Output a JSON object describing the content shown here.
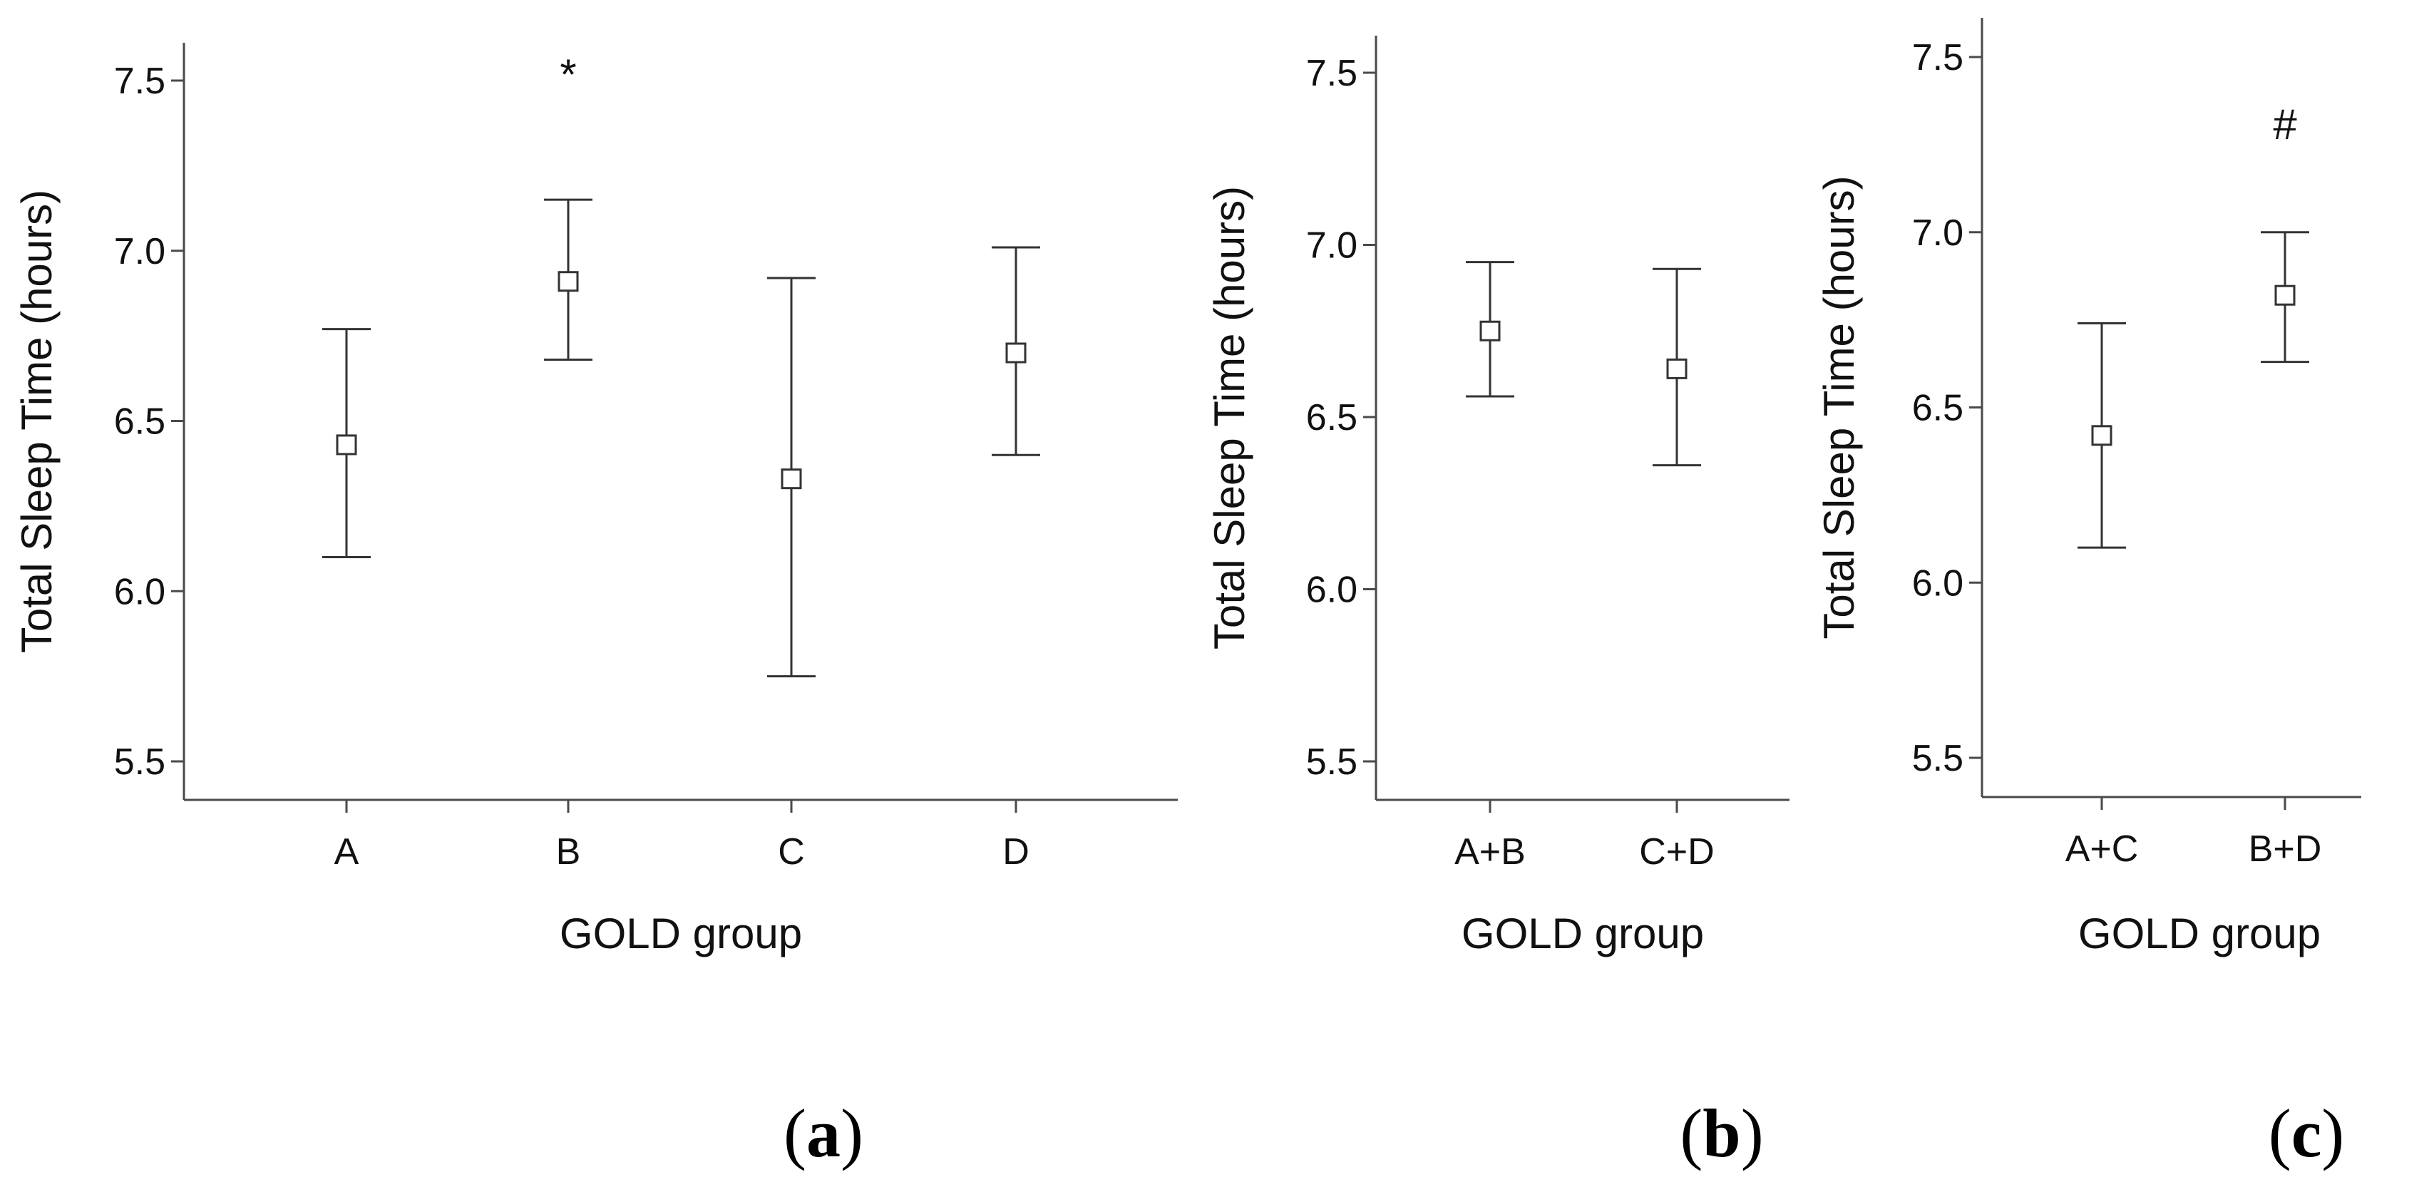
{
  "chart_data": [
    {
      "type": "errorbar",
      "panel_label": "(a)",
      "panel_label_text": "a",
      "xlabel": "GOLD group",
      "ylabel": "Total Sleep Time (hours)",
      "ylim": [
        5.4,
        7.62
      ],
      "yticks": [
        "5.5",
        "6.0",
        "6.5",
        "7.0",
        "7.5"
      ],
      "categories": [
        "A",
        "B",
        "C",
        "D"
      ],
      "means": [
        6.43,
        6.91,
        6.33,
        6.7
      ],
      "lower": [
        6.1,
        6.68,
        5.75,
        6.4
      ],
      "upper": [
        6.77,
        7.15,
        6.92,
        7.01
      ],
      "annotations": [
        "",
        "*",
        "",
        ""
      ]
    },
    {
      "type": "errorbar",
      "panel_label": "(b)",
      "panel_label_text": "b",
      "xlabel": "GOLD group",
      "ylabel": "Total Sleep Time (hours)",
      "ylim": [
        5.4,
        7.62
      ],
      "yticks": [
        "5.5",
        "6.0",
        "6.5",
        "7.0",
        "7.5"
      ],
      "categories": [
        "A+B",
        "C+D"
      ],
      "means": [
        6.75,
        6.64
      ],
      "lower": [
        6.56,
        6.36
      ],
      "upper": [
        6.95,
        6.93
      ],
      "annotations": [
        "",
        ""
      ]
    },
    {
      "type": "errorbar",
      "panel_label": "(c)",
      "panel_label_text": "c",
      "xlabel": "GOLD group",
      "ylabel": "Total Sleep Time (hours)",
      "ylim": [
        5.4,
        7.62
      ],
      "yticks": [
        "5.5",
        "6.0",
        "6.5",
        "7.0",
        "7.5"
      ],
      "categories": [
        "A+C",
        "B+D"
      ],
      "means": [
        6.42,
        6.82
      ],
      "lower": [
        6.1,
        6.63
      ],
      "upper": [
        6.74,
        7.0
      ],
      "annotations": [
        "",
        "#"
      ]
    }
  ]
}
